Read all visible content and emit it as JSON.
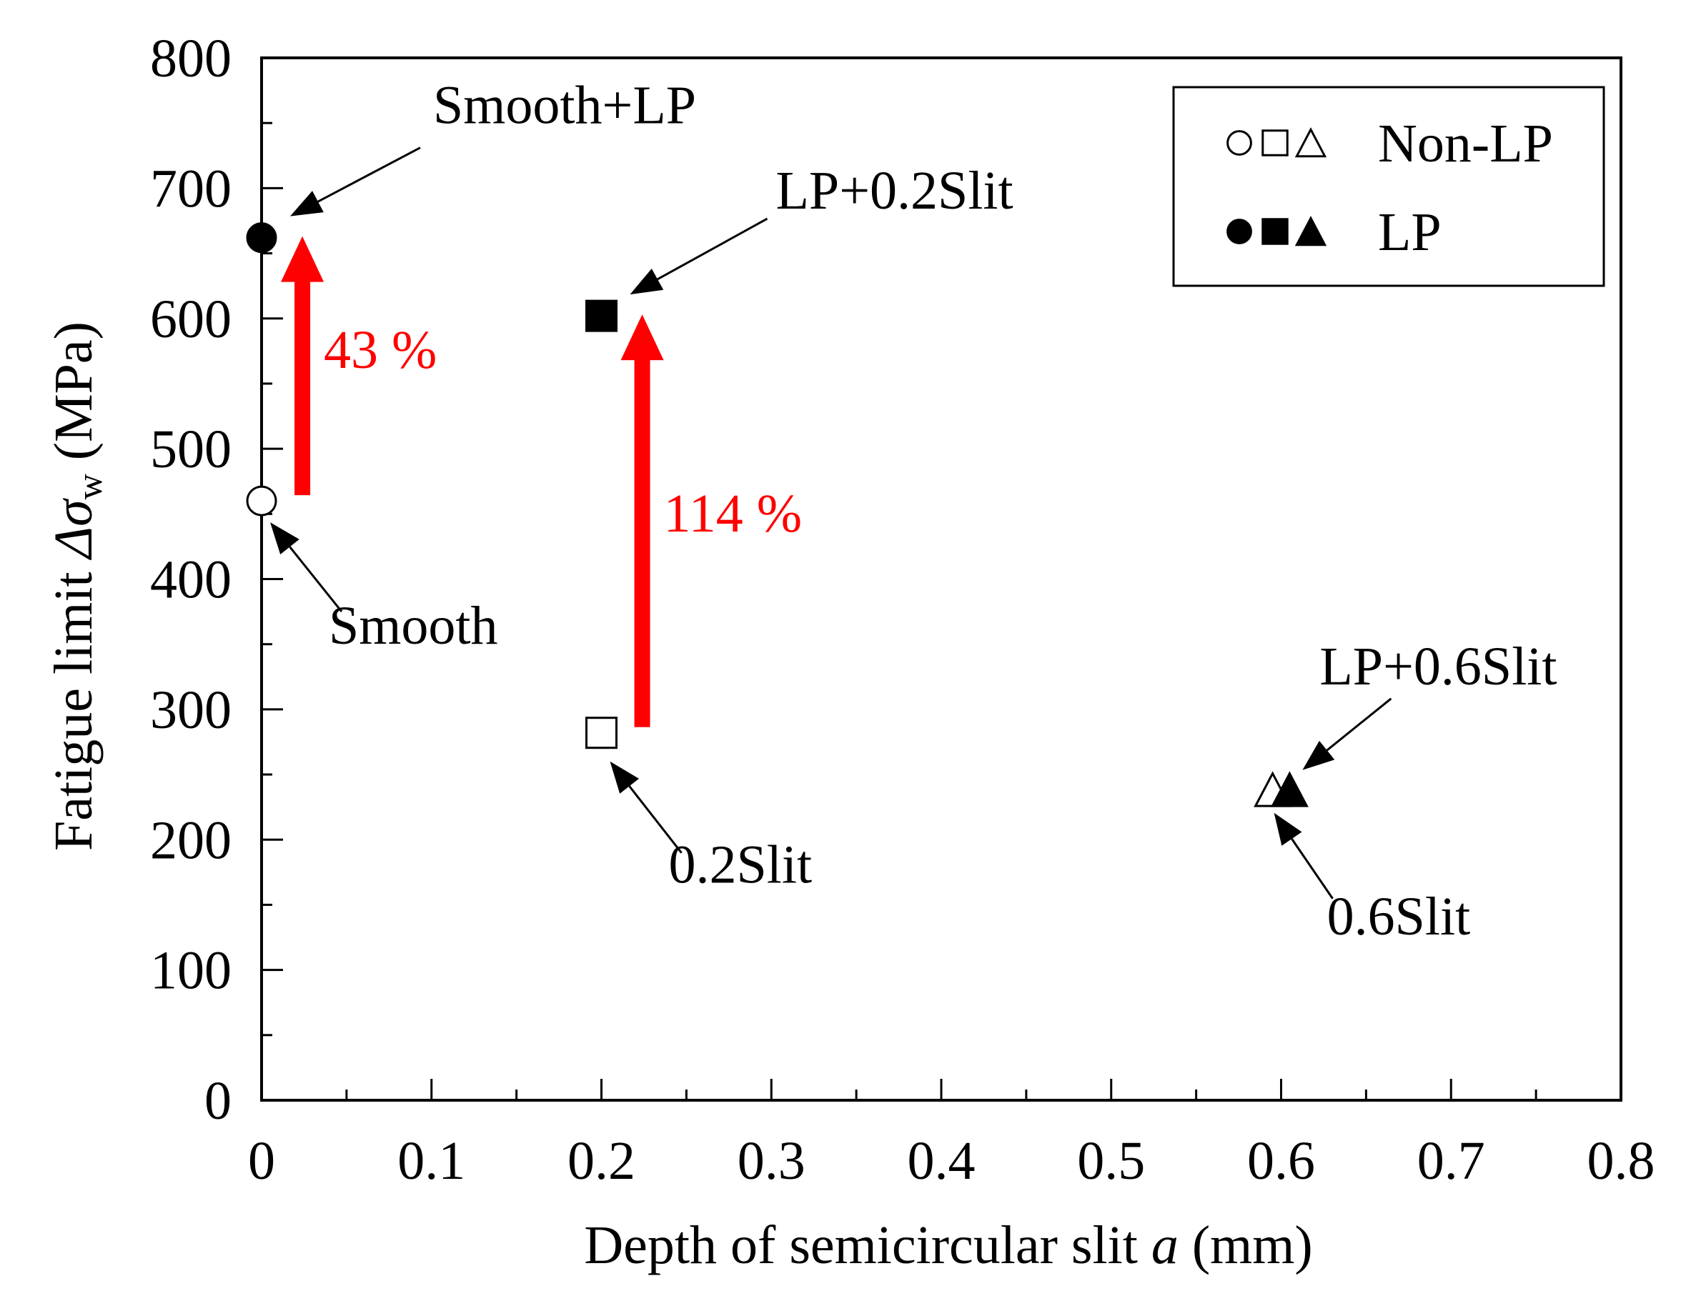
{
  "chart_data": {
    "type": "scatter",
    "title": "",
    "xlabel": {
      "prefix": "Depth of semicircular slit ",
      "var": "a",
      "suffix": " (mm)"
    },
    "ylabel": {
      "prefix": "Fatigue limit ",
      "var": "Δσ",
      "sub": "w",
      "suffix": " (MPa)"
    },
    "xlim": [
      0,
      0.8
    ],
    "ylim": [
      0,
      800
    ],
    "x_ticks": [
      0,
      0.1,
      0.2,
      0.3,
      0.4,
      0.5,
      0.6,
      0.7,
      0.8
    ],
    "x_tick_labels": [
      "0",
      "0.1",
      "0.2",
      "0.3",
      "0.4",
      "0.5",
      "0.6",
      "0.7",
      "0.8"
    ],
    "y_ticks": [
      0,
      100,
      200,
      300,
      400,
      500,
      600,
      700,
      800
    ],
    "y_tick_labels": [
      "0",
      "100",
      "200",
      "300",
      "400",
      "500",
      "600",
      "700",
      "800"
    ],
    "series": [
      {
        "name": "Non-LP",
        "filled": false,
        "points": [
          {
            "label": "Smooth",
            "x": 0.0,
            "y": 460,
            "marker": "circle"
          },
          {
            "label": "0.2Slit",
            "x": 0.2,
            "y": 282,
            "marker": "square"
          },
          {
            "label": "0.6Slit",
            "x": 0.595,
            "y": 237,
            "marker": "triangle"
          }
        ]
      },
      {
        "name": "LP",
        "filled": true,
        "points": [
          {
            "label": "Smooth+LP",
            "x": 0.0,
            "y": 662,
            "marker": "circle"
          },
          {
            "label": "LP+0.2Slit",
            "x": 0.2,
            "y": 602,
            "marker": "square"
          },
          {
            "label": "LP+0.6Slit",
            "x": 0.605,
            "y": 237,
            "marker": "triangle"
          }
        ]
      }
    ],
    "improvements": [
      {
        "label": "43 %",
        "x": 0.024,
        "from": 460,
        "to": 662,
        "color": "#ff0000"
      },
      {
        "label": "114 %",
        "x": 0.224,
        "from": 282,
        "to": 602,
        "color": "#ff0000"
      }
    ],
    "legend": {
      "position": "top-right",
      "entries": [
        {
          "name": "Non-LP",
          "filled": false
        },
        {
          "name": "LP",
          "filled": true
        }
      ]
    }
  }
}
